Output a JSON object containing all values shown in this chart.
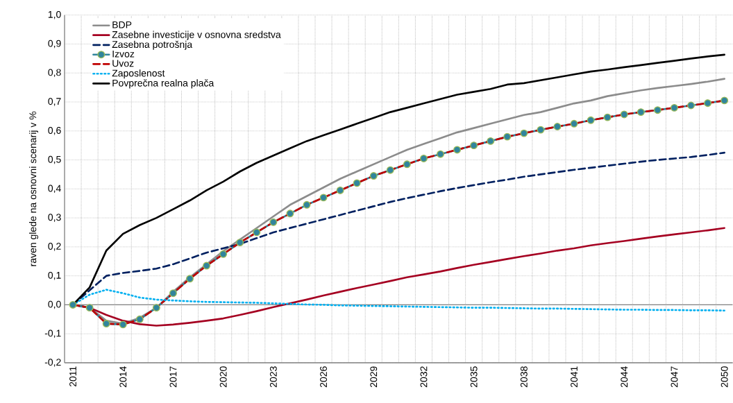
{
  "chart_data": {
    "type": "line",
    "ylabel": "raven glede na osnovni scenarij v %",
    "x": [
      2011,
      2012,
      2013,
      2014,
      2015,
      2016,
      2017,
      2018,
      2019,
      2020,
      2021,
      2022,
      2023,
      2024,
      2025,
      2026,
      2027,
      2028,
      2029,
      2030,
      2031,
      2032,
      2033,
      2034,
      2035,
      2036,
      2037,
      2038,
      2039,
      2040,
      2041,
      2042,
      2043,
      2044,
      2045,
      2046,
      2047,
      2048,
      2049,
      2050
    ],
    "xlim": [
      2010.5,
      2050.5
    ],
    "xticks": [
      2011,
      2014,
      2017,
      2020,
      2023,
      2026,
      2029,
      2032,
      2035,
      2038,
      2041,
      2044,
      2047,
      2050
    ],
    "ylim": [
      -0.2,
      1.0
    ],
    "yticks": [
      {
        "value": -0.2,
        "label": "-0,2"
      },
      {
        "value": -0.1,
        "label": "-0,1"
      },
      {
        "value": 0,
        "label": "0,0"
      },
      {
        "value": 0.1,
        "label": "0,1"
      },
      {
        "value": 0.2,
        "label": "0,2"
      },
      {
        "value": 0.3,
        "label": "0,3"
      },
      {
        "value": 0.4,
        "label": "0,4"
      },
      {
        "value": 0.5,
        "label": "0,5"
      },
      {
        "value": 0.6,
        "label": "0,6"
      },
      {
        "value": 0.7,
        "label": "0,7"
      },
      {
        "value": 0.8,
        "label": "0,8"
      },
      {
        "value": 0.9,
        "label": "0,9"
      },
      {
        "value": 1.0,
        "label": "1,0"
      }
    ],
    "grid": true,
    "legend": "top left",
    "ref_lines": [
      {
        "axis": "y",
        "value": 0,
        "color": "#808080"
      }
    ],
    "series": [
      {
        "name": "BDP",
        "color": "#8c8c8c",
        "line_style": "solid",
        "values": [
          0,
          -0.01,
          -0.055,
          -0.065,
          -0.045,
          -0.01,
          0.045,
          0.095,
          0.14,
          0.185,
          0.225,
          0.265,
          0.305,
          0.345,
          0.375,
          0.405,
          0.435,
          0.46,
          0.485,
          0.51,
          0.535,
          0.555,
          0.575,
          0.595,
          0.61,
          0.625,
          0.64,
          0.655,
          0.665,
          0.68,
          0.695,
          0.705,
          0.72,
          0.73,
          0.74,
          0.748,
          0.755,
          0.762,
          0.77,
          0.78
        ]
      },
      {
        "name": "Zasebne investicije v osnovna sredstva",
        "color": "#a50021",
        "line_style": "solid",
        "values": [
          0,
          -0.01,
          -0.035,
          -0.055,
          -0.067,
          -0.072,
          -0.068,
          -0.062,
          -0.055,
          -0.047,
          -0.035,
          -0.022,
          -0.008,
          0.005,
          0.018,
          0.032,
          0.045,
          0.058,
          0.07,
          0.082,
          0.095,
          0.105,
          0.115,
          0.127,
          0.138,
          0.148,
          0.158,
          0.168,
          0.177,
          0.187,
          0.195,
          0.205,
          0.213,
          0.22,
          0.228,
          0.236,
          0.243,
          0.25,
          0.257,
          0.265
        ]
      },
      {
        "name": "Zasebna potrošnja",
        "color": "#002060",
        "line_style": "dashed",
        "values": [
          0,
          0.05,
          0.1,
          0.11,
          0.117,
          0.125,
          0.14,
          0.16,
          0.18,
          0.195,
          0.21,
          0.23,
          0.25,
          0.265,
          0.28,
          0.295,
          0.31,
          0.325,
          0.34,
          0.355,
          0.368,
          0.38,
          0.392,
          0.403,
          0.413,
          0.423,
          0.432,
          0.442,
          0.45,
          0.458,
          0.466,
          0.473,
          0.48,
          0.487,
          0.494,
          0.5,
          0.505,
          0.51,
          0.517,
          0.525
        ]
      },
      {
        "name": "Izvoz",
        "color": "#31859c",
        "line_style": "solid",
        "marker": "circle",
        "values": [
          0,
          -0.01,
          -0.065,
          -0.068,
          -0.05,
          -0.01,
          0.04,
          0.09,
          0.135,
          0.175,
          0.215,
          0.25,
          0.285,
          0.315,
          0.345,
          0.37,
          0.395,
          0.42,
          0.445,
          0.465,
          0.485,
          0.505,
          0.52,
          0.535,
          0.55,
          0.565,
          0.58,
          0.592,
          0.604,
          0.615,
          0.625,
          0.637,
          0.647,
          0.657,
          0.665,
          0.672,
          0.68,
          0.688,
          0.696,
          0.705
        ]
      },
      {
        "name": "Uvoz",
        "color": "#c00000",
        "line_style": "dashed",
        "values": [
          0,
          -0.01,
          -0.065,
          -0.068,
          -0.05,
          -0.01,
          0.04,
          0.09,
          0.135,
          0.175,
          0.215,
          0.25,
          0.285,
          0.315,
          0.345,
          0.37,
          0.395,
          0.42,
          0.445,
          0.465,
          0.485,
          0.505,
          0.52,
          0.535,
          0.55,
          0.565,
          0.58,
          0.592,
          0.604,
          0.615,
          0.625,
          0.637,
          0.647,
          0.657,
          0.665,
          0.672,
          0.68,
          0.688,
          0.696,
          0.705
        ]
      },
      {
        "name": "Zaposlenost",
        "color": "#00b0f0",
        "line_style": "dotted",
        "values": [
          0,
          0.035,
          0.052,
          0.04,
          0.025,
          0.018,
          0.015,
          0.012,
          0.01,
          0.009,
          0.008,
          0.007,
          0.005,
          0.003,
          0.001,
          0,
          -0.002,
          -0.003,
          -0.004,
          -0.005,
          -0.006,
          -0.007,
          -0.008,
          -0.009,
          -0.01,
          -0.01,
          -0.011,
          -0.012,
          -0.013,
          -0.013,
          -0.014,
          -0.015,
          -0.016,
          -0.017,
          -0.017,
          -0.018,
          -0.018,
          -0.019,
          -0.019,
          -0.02
        ]
      },
      {
        "name": "Povprečna realna plača",
        "color": "#000000",
        "line_style": "solid",
        "values": [
          0,
          0.06,
          0.187,
          0.245,
          0.275,
          0.3,
          0.33,
          0.36,
          0.395,
          0.425,
          0.46,
          0.49,
          0.515,
          0.54,
          0.565,
          0.585,
          0.605,
          0.625,
          0.645,
          0.665,
          0.68,
          0.695,
          0.71,
          0.725,
          0.735,
          0.745,
          0.76,
          0.765,
          0.775,
          0.785,
          0.795,
          0.805,
          0.812,
          0.82,
          0.827,
          0.835,
          0.842,
          0.85,
          0.857,
          0.863
        ]
      }
    ]
  }
}
